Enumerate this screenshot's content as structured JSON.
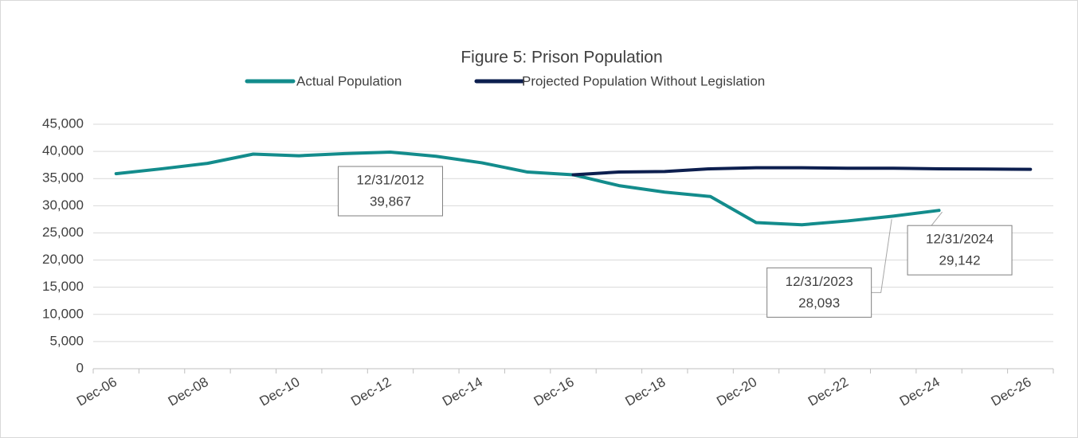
{
  "chart_data": {
    "type": "line",
    "title": "Figure 5: Prison Population",
    "categories": [
      "Dec-06",
      null,
      "Dec-08",
      null,
      "Dec-10",
      null,
      "Dec-12",
      null,
      "Dec-14",
      null,
      "Dec-16",
      null,
      "Dec-18",
      null,
      "Dec-20",
      null,
      "Dec-22",
      null,
      "Dec-24",
      null,
      "Dec-26"
    ],
    "series": [
      {
        "name": "Actual Population",
        "color": "#138c8c",
        "values": [
          35900,
          36800,
          37800,
          39500,
          39200,
          39600,
          39867,
          39100,
          37900,
          36200,
          35700,
          33700,
          32500,
          31700,
          26900,
          26500,
          27200,
          28093,
          29142,
          null,
          null
        ],
        "value_labels": [
          null,
          null,
          null,
          null,
          null,
          null,
          "39,867",
          null,
          null,
          null,
          null,
          null,
          null,
          null,
          null,
          null,
          null,
          "28,093",
          "29,142",
          null,
          null
        ],
        "label_dates": [
          null,
          null,
          null,
          null,
          null,
          null,
          "12/31/2012",
          null,
          null,
          null,
          null,
          null,
          null,
          null,
          null,
          null,
          null,
          "12/31/2023",
          "12/31/2024",
          null,
          null
        ]
      },
      {
        "name": "Projected Population Without Legislation",
        "color": "#0d1f4f",
        "values": [
          null,
          null,
          null,
          null,
          null,
          null,
          null,
          null,
          null,
          null,
          35700,
          36200,
          36300,
          36800,
          37000,
          37000,
          36900,
          36900,
          36800,
          36750,
          36700
        ]
      }
    ],
    "ylim": [
      0,
      45000
    ],
    "yticks": [
      0,
      {
        "value": 5000,
        "label": "5,000"
      },
      {
        "value": 10000,
        "label": "10,000"
      },
      {
        "value": 15000,
        "label": "15,000"
      },
      {
        "value": 20000,
        "label": "20,000"
      },
      {
        "value": 25000,
        "label": "25,000"
      },
      {
        "value": 30000,
        "label": "30,000"
      },
      {
        "value": 35000,
        "label": "35,000"
      },
      {
        "value": 40000,
        "label": "40,000"
      },
      {
        "value": 45000,
        "label": "45,000"
      }
    ],
    "grid": true,
    "legend": "top"
  }
}
